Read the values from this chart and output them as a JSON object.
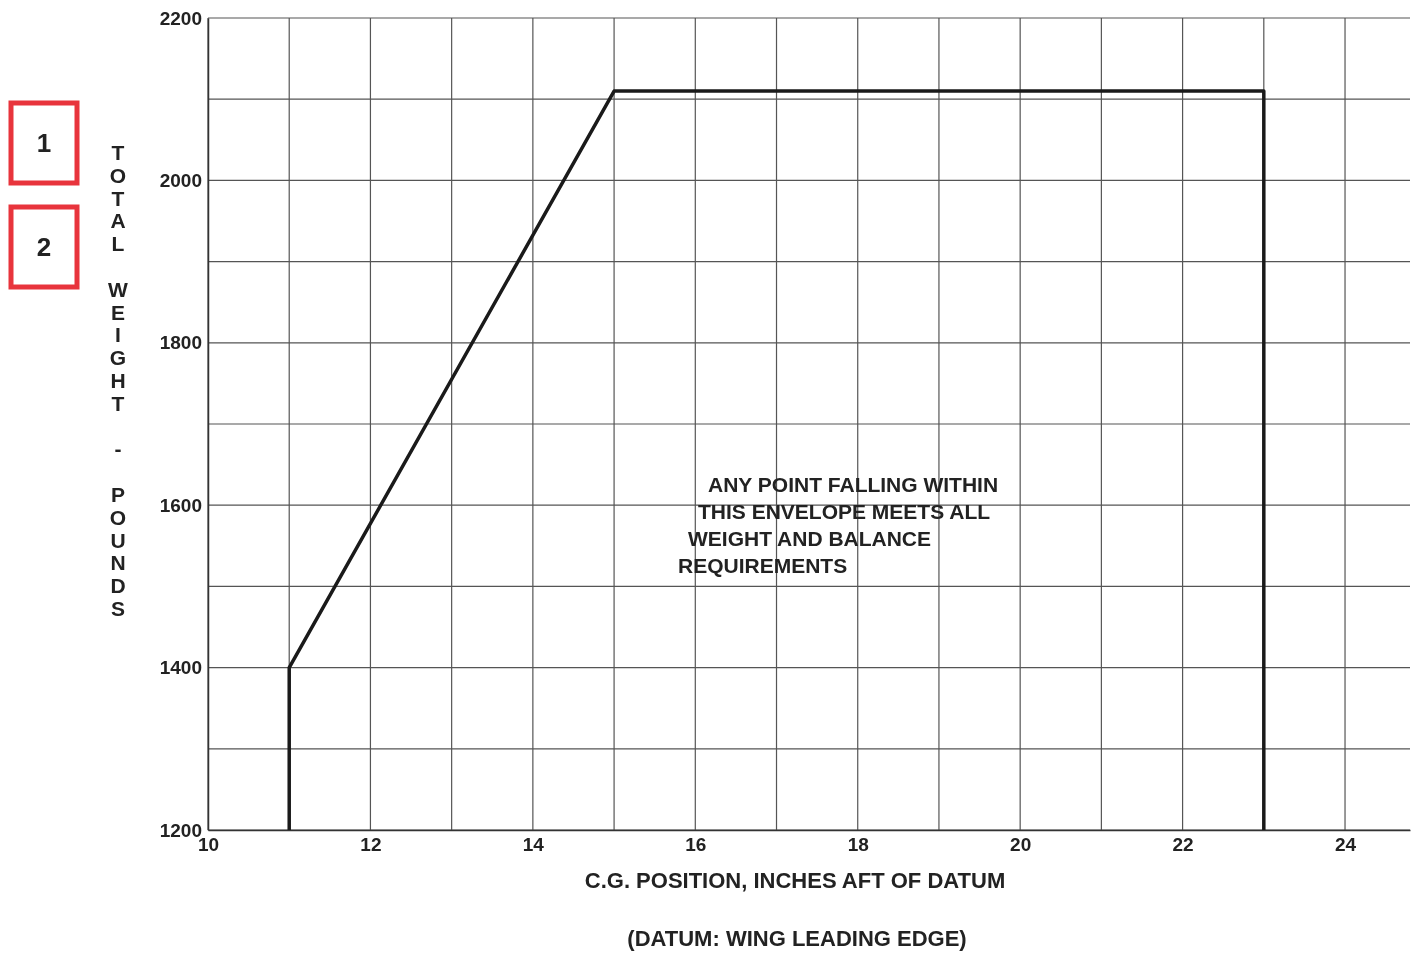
{
  "chart_data": {
    "type": "line",
    "xlabel": "C.G. POSITION, INCHES AFT OF DATUM",
    "ylabel": "TOTAL WEIGHT - POUNDS",
    "x": [
      11,
      11,
      15,
      23,
      23
    ],
    "series": [
      {
        "color": "#1a1a1a",
        "values": [
          1200,
          1400,
          2110,
          2110,
          1200
        ]
      }
    ],
    "xlim": [
      10,
      24.8
    ],
    "xticks": [
      10,
      {
        "value": 11,
        "label": null
      },
      12,
      {
        "value": 13,
        "label": null
      },
      14,
      {
        "value": 15,
        "label": null
      },
      16,
      {
        "value": 17,
        "label": null
      },
      18,
      {
        "value": 19,
        "label": null
      },
      20,
      {
        "value": 21,
        "label": null
      },
      22,
      {
        "value": 23,
        "label": null
      },
      24
    ],
    "ylim": [
      1200,
      2200
    ],
    "yticks": [
      1200,
      {
        "value": 1300,
        "label": null
      },
      1400,
      {
        "value": 1500,
        "label": null
      },
      1600,
      {
        "value": 1700,
        "label": null
      },
      1800,
      {
        "value": 1900,
        "label": null
      },
      2000,
      {
        "value": 2100,
        "label": null
      },
      2200
    ],
    "grid": true,
    "marker": "none",
    "line_style": "solid",
    "annotations": [
      "1",
      "2",
      "ANY POINT FALLING WITHIN\nTHIS ENVELOPE MEETS ALL\nWEIGHT AND BALANCE\nREQUIREMENTS",
      "(DATUM: WING LEADING EDGE)"
    ]
  }
}
